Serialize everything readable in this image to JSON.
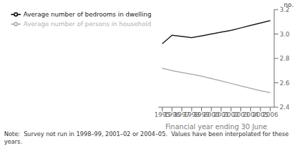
{
  "chart_data": {
    "type": "line",
    "x": [
      1995,
      1996,
      1997,
      1998,
      1999,
      2000,
      2001,
      2002,
      2003,
      2004,
      2005,
      2006
    ],
    "series": [
      {
        "name": "Average number of bedrooms in dwelling",
        "color": "#1a1a1a",
        "values": [
          2.92,
          2.99,
          2.98,
          2.97,
          2.985,
          3.0,
          3.015,
          3.03,
          3.05,
          3.07,
          3.09,
          3.11
        ]
      },
      {
        "name": "Average number of persons in household",
        "color": "#b0b0b0",
        "values": [
          2.72,
          2.7,
          2.685,
          2.67,
          2.655,
          2.635,
          2.615,
          2.595,
          2.575,
          2.555,
          2.535,
          2.52
        ]
      }
    ],
    "xlim": [
      1994.6,
      2006.4
    ],
    "xticks": [
      1995,
      1996,
      1997,
      1998,
      1999,
      2000,
      2001,
      2002,
      2003,
      2004,
      2005,
      2006
    ],
    "ylim": [
      2.4,
      3.2
    ],
    "yticks": [
      2.4,
      2.6,
      2.8,
      {
        "value": 3.0,
        "label": "3.0"
      },
      3.2
    ],
    "xlabel": "Financial year ending 30 June",
    "ylabel": "no.",
    "annotations": [
      "Note:  Survey not run in 1998–99, 2001–02 or 2004–05.  Values have been interpolated for these years."
    ],
    "grid": false,
    "legend": "upper left"
  }
}
